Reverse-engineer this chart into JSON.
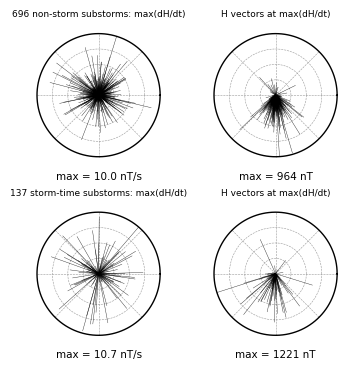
{
  "title_ul": "696 non-storm substorms: max(dH/dt)",
  "title_ur": "H vectors at max(dH/dt)",
  "title_ll": "137 storm-time substorms: max(dH/dt)",
  "title_lr": "H vectors at max(dH/dt)",
  "caption_ul": "max = 10.0 nT/s",
  "caption_ur": "max = 964 nT",
  "caption_ll": "max = 10.7 nT/s",
  "caption_lr": "max = 1221 nT",
  "background_color": "#ffffff",
  "title_fontsize": 6.5,
  "caption_fontsize": 7.5,
  "n_nonstorm": 696,
  "n_storm": 137
}
